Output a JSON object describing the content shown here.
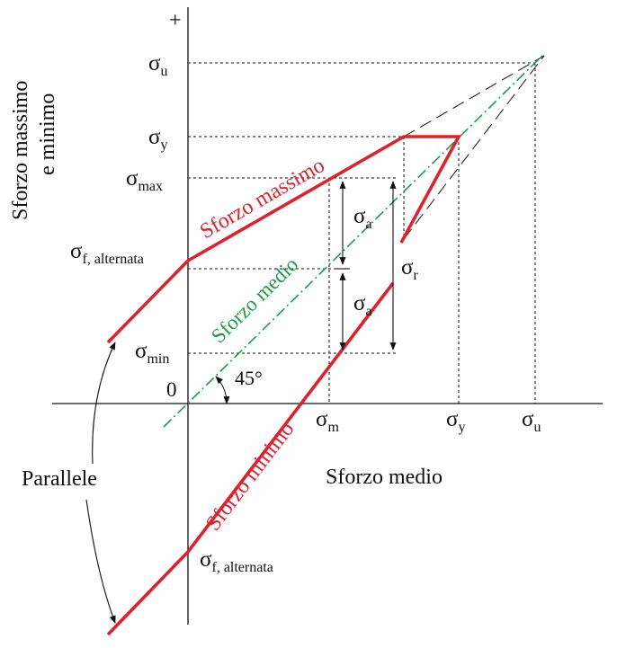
{
  "colors": {
    "max_min_lines": "#e0202a",
    "mean_line": "#1f9a4a",
    "axes": "#111111",
    "guides": "#111111"
  },
  "axes": {
    "plus_sign": "+",
    "y_label_line1": "Sforzo massimo",
    "y_label_line2": "e minimo",
    "x_label": "Sforzo medio",
    "origin": "0"
  },
  "y_ticks": {
    "sigma_u": {
      "sym": "σ",
      "sub": "u"
    },
    "sigma_y": {
      "sym": "σ",
      "sub": "y"
    },
    "sigma_max": {
      "sym": "σ",
      "sub": "max"
    },
    "sigma_f_upper": {
      "sym": "σ",
      "sub": "f, alternata"
    },
    "sigma_min": {
      "sym": "σ",
      "sub": "min"
    },
    "sigma_f_lower": {
      "sym": "σ",
      "sub": "f, alternata"
    }
  },
  "x_ticks": {
    "sigma_m": {
      "sym": "σ",
      "sub": "m"
    },
    "sigma_y": {
      "sym": "σ",
      "sub": "y"
    },
    "sigma_u": {
      "sym": "σ",
      "sub": "u"
    }
  },
  "annotations": {
    "sigma_a_upper": {
      "sym": "σ",
      "sub": "a"
    },
    "sigma_a_lower": {
      "sym": "σ",
      "sub": "a"
    },
    "sigma_r": {
      "sym": "σ",
      "sub": "r"
    },
    "angle": "45°",
    "parallel": "Parallele"
  },
  "line_labels": {
    "max": "Sforzo massimo",
    "mean": "Sforzo medio",
    "min": "Sforzo minimo"
  },
  "icons": [
    "arrow-head-icon"
  ]
}
